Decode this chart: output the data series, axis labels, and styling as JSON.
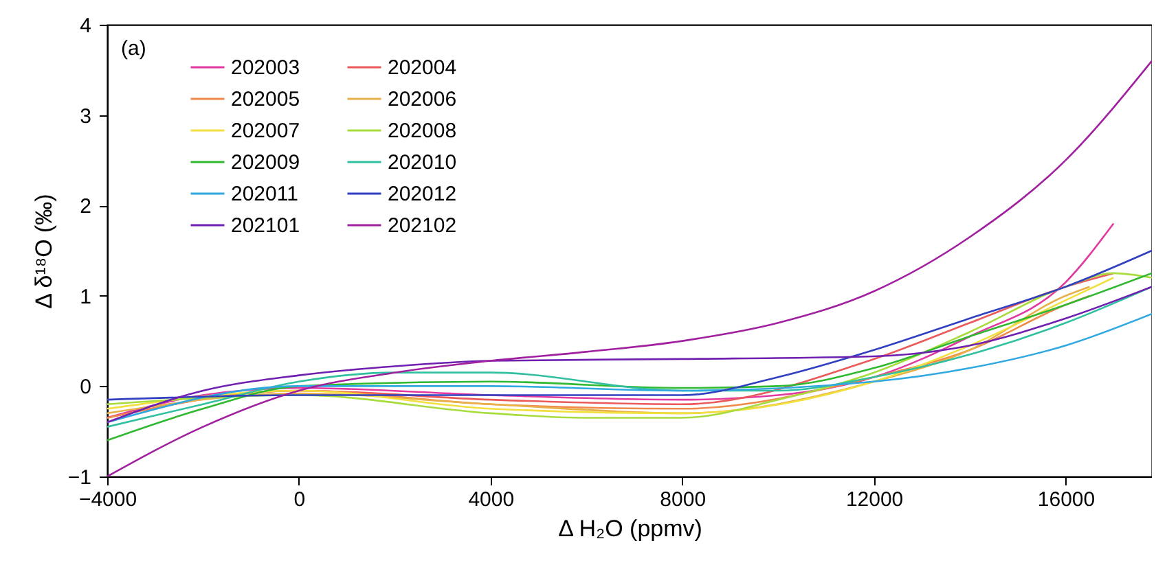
{
  "chart_data": {
    "type": "line",
    "xlabel": "Δ H₂O (ppmv)",
    "ylabel": "Δ δ¹⁸O (‰)",
    "annotations": [
      "(a)"
    ],
    "xlim": [
      -4000,
      17800
    ],
    "xticks": [
      -4000,
      0,
      4000,
      8000,
      12000,
      16000
    ],
    "ylim": [
      -1,
      4
    ],
    "yticks": [
      -1,
      0,
      1,
      2,
      3,
      4
    ],
    "grid": false,
    "legend": "top left",
    "marker": "none",
    "line_style": "solid",
    "series": [
      {
        "name": "202003",
        "color": "#e2389f",
        "x": [
          -4000,
          -2000,
          0,
          4000,
          8000,
          10000,
          12000,
          14000,
          16000,
          17000
        ],
        "values": [
          -0.35,
          -0.1,
          -0.02,
          -0.1,
          -0.15,
          -0.1,
          0.1,
          0.55,
          1.15,
          1.8
        ]
      },
      {
        "name": "202004",
        "color": "#ea5a5a",
        "x": [
          -4000,
          0,
          4000,
          8000,
          12000,
          14000,
          16000,
          17000
        ],
        "values": [
          -0.35,
          -0.05,
          -0.15,
          -0.2,
          0.3,
          0.7,
          1.1,
          1.25
        ]
      },
      {
        "name": "202005",
        "color": "#f08a4b",
        "x": [
          -4000,
          0,
          4000,
          8000,
          12000,
          14000,
          16000,
          16500
        ],
        "values": [
          -0.35,
          -0.05,
          -0.2,
          -0.25,
          0.1,
          0.4,
          0.9,
          1.0
        ]
      },
      {
        "name": "202006",
        "color": "#e8b04a",
        "x": [
          -4000,
          0,
          4000,
          8000,
          12000,
          14000,
          16000,
          16500
        ],
        "values": [
          -0.3,
          -0.08,
          -0.2,
          -0.3,
          0.05,
          0.4,
          1.0,
          1.1
        ]
      },
      {
        "name": "202007",
        "color": "#f2e040",
        "x": [
          -4000,
          0,
          4000,
          8000,
          12000,
          14000,
          16000,
          17000
        ],
        "values": [
          -0.25,
          -0.05,
          -0.25,
          -0.3,
          0.05,
          0.45,
          0.95,
          1.2
        ]
      },
      {
        "name": "202008",
        "color": "#a8dc3c",
        "x": [
          -4000,
          0,
          4000,
          6000,
          8000,
          10000,
          12000,
          14000,
          16000,
          17000,
          17800
        ],
        "values": [
          -0.2,
          -0.1,
          -0.3,
          -0.35,
          -0.35,
          -0.15,
          0.15,
          0.6,
          1.1,
          1.25,
          1.2
        ]
      },
      {
        "name": "202009",
        "color": "#30b830",
        "x": [
          -4000,
          -2000,
          0,
          4000,
          8000,
          10000,
          12000,
          14000,
          16000,
          17800
        ],
        "values": [
          -0.6,
          -0.25,
          0.0,
          0.05,
          -0.02,
          0.0,
          0.2,
          0.55,
          0.9,
          1.25
        ]
      },
      {
        "name": "202010",
        "color": "#30c0a0",
        "x": [
          -4000,
          -2000,
          0,
          2000,
          4000,
          8000,
          10000,
          12000,
          14000,
          16000,
          17800
        ],
        "values": [
          -0.45,
          -0.2,
          0.05,
          0.15,
          0.15,
          -0.05,
          -0.05,
          0.1,
          0.35,
          0.7,
          1.1
        ]
      },
      {
        "name": "202011",
        "color": "#30a8e0",
        "x": [
          -4000,
          0,
          4000,
          8000,
          12000,
          14000,
          16000,
          17800
        ],
        "values": [
          -0.4,
          0.0,
          0.0,
          -0.05,
          0.05,
          0.2,
          0.45,
          0.8
        ]
      },
      {
        "name": "202012",
        "color": "#3040c0",
        "x": [
          -4000,
          0,
          4000,
          8000,
          10000,
          12000,
          14000,
          16000,
          17800
        ],
        "values": [
          -0.15,
          -0.1,
          -0.1,
          -0.1,
          0.1,
          0.4,
          0.75,
          1.1,
          1.5
        ]
      },
      {
        "name": "202101",
        "color": "#7020b0",
        "x": [
          -4000,
          -2000,
          0,
          2000,
          4000,
          8000,
          12000,
          14000,
          16000,
          17800
        ],
        "values": [
          -0.4,
          -0.05,
          0.12,
          0.22,
          0.28,
          0.3,
          0.33,
          0.45,
          0.75,
          1.1
        ]
      },
      {
        "name": "202102",
        "color": "#a020a0",
        "x": [
          -4000,
          -2000,
          0,
          2000,
          4000,
          6000,
          8000,
          10000,
          12000,
          14000,
          16000,
          17800
        ],
        "values": [
          -1.0,
          -0.45,
          -0.05,
          0.15,
          0.28,
          0.38,
          0.5,
          0.7,
          1.05,
          1.65,
          2.5,
          3.6
        ]
      }
    ]
  }
}
